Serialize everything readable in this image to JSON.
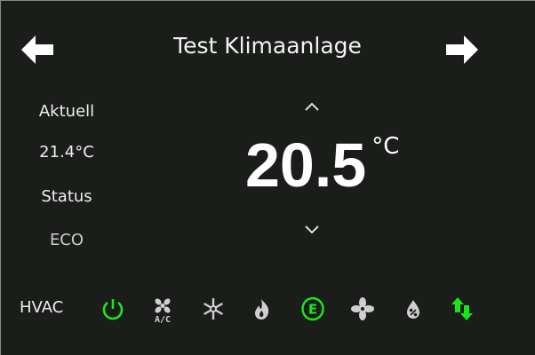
{
  "header": {
    "title": "Test Klimaanlage",
    "prev_icon": "arrow-left-icon",
    "next_icon": "arrow-right-icon"
  },
  "left": {
    "current_label": "Aktuell",
    "current_value": "21.4°C",
    "status_label": "Status",
    "status_value": "ECO"
  },
  "setpoint": {
    "value": "20.5",
    "unit": "°C"
  },
  "hvac": {
    "label": "HVAC",
    "modes": [
      {
        "icon": "power-icon",
        "active": true
      },
      {
        "icon": "ac-fan-icon",
        "text": "A/C",
        "active": false
      },
      {
        "icon": "snowflake-icon",
        "active": false
      },
      {
        "icon": "flame-icon",
        "active": false
      },
      {
        "icon": "eco-icon",
        "text": "E",
        "active": true
      },
      {
        "icon": "fan-icon",
        "active": false
      },
      {
        "icon": "dry-icon",
        "active": false
      },
      {
        "icon": "auto-arrows-icon",
        "active": true
      }
    ]
  },
  "colors": {
    "background": "#1a1d1a",
    "active": "#19e619",
    "inactive": "#cfcfcf",
    "text": "#eeeeee"
  }
}
